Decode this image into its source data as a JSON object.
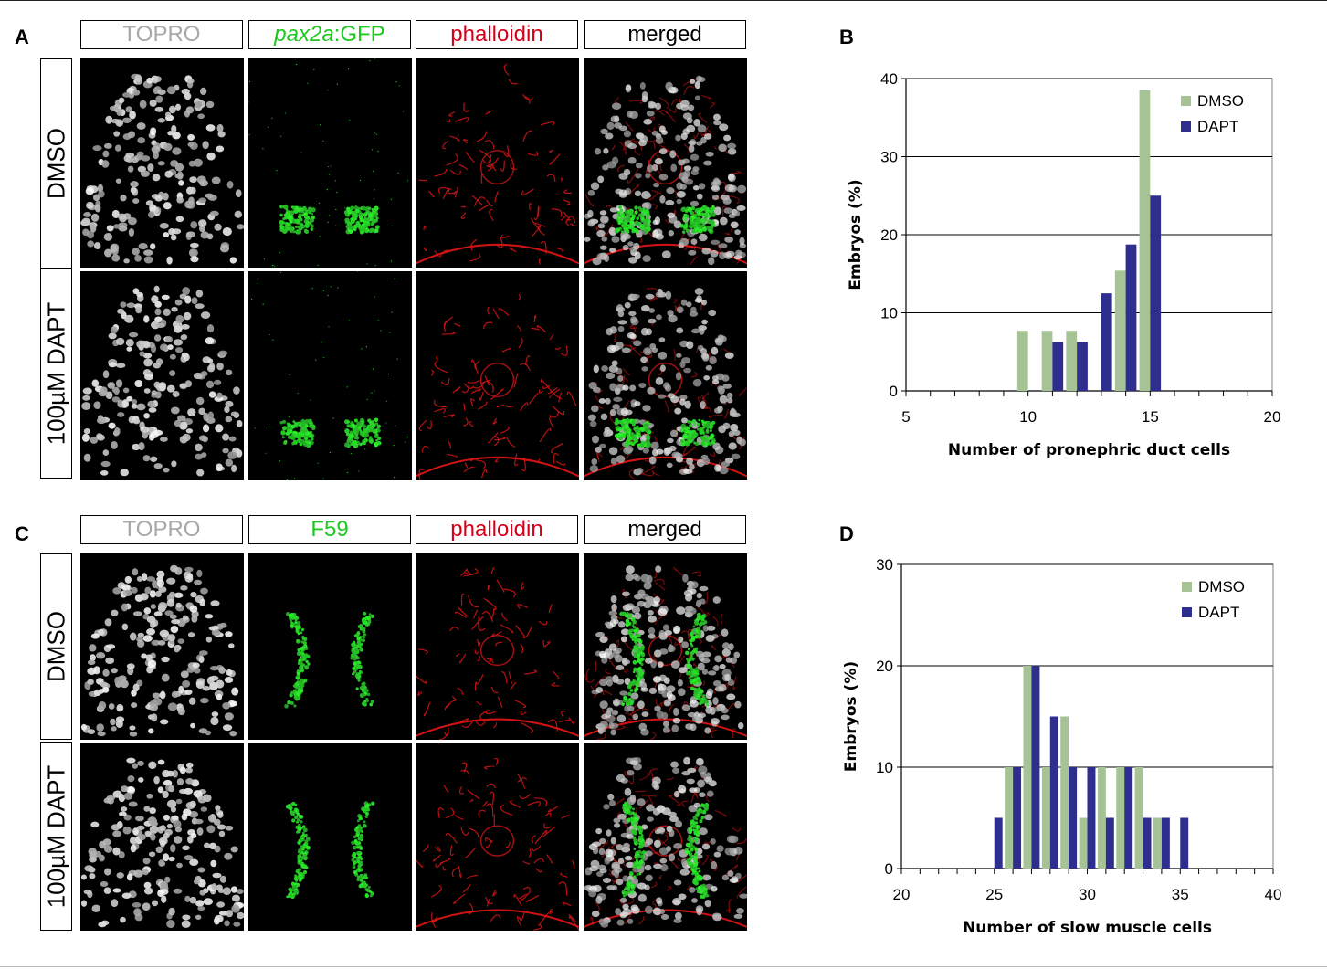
{
  "colors": {
    "gray_label": "#a8a8a8",
    "green_label": "#1ec81e",
    "red_label": "#d4001a",
    "black_label": "#000000",
    "dmso_bar": "#a6c396",
    "dapt_bar": "#2e2e8e"
  },
  "panel_a": {
    "letter": "A",
    "col_headers": [
      {
        "pre": "TOPRO",
        "post": "",
        "color": "#a8a8a8"
      },
      {
        "pre": "pax2a",
        "post": ":GFP",
        "color": "#1ec81e"
      },
      {
        "pre": "phalloidin",
        "post": "",
        "color": "#d4001a"
      },
      {
        "pre": "merged",
        "post": "",
        "color": "#000000"
      }
    ],
    "row_labels": [
      "DMSO",
      "100µM DAPT"
    ]
  },
  "panel_c": {
    "letter": "C",
    "col_headers": [
      {
        "pre": "TOPRO",
        "post": "",
        "color": "#a8a8a8"
      },
      {
        "pre": "F59",
        "post": "",
        "color": "#1ec81e"
      },
      {
        "pre": "phalloidin",
        "post": "",
        "color": "#d4001a"
      },
      {
        "pre": "merged",
        "post": "",
        "color": "#000000"
      }
    ],
    "row_labels": [
      "DMSO",
      "100µM DAPT"
    ]
  },
  "panel_b": {
    "letter": "B"
  },
  "panel_d": {
    "letter": "D"
  },
  "chart_data": [
    {
      "panel": "B",
      "type": "bar",
      "xlabel": "Number of pronephric duct cells",
      "ylabel": "Embryos (%)",
      "xlim": [
        5,
        20
      ],
      "ylim": [
        0,
        40
      ],
      "xticks": [
        5,
        10,
        15,
        20
      ],
      "yticks": [
        0,
        10,
        20,
        30,
        40
      ],
      "grid": true,
      "legend_position": "top-right",
      "x": [
        10,
        11,
        12,
        13,
        14,
        15
      ],
      "series": [
        {
          "name": "DMSO",
          "color": "#a6c396",
          "values": [
            7.7,
            7.7,
            7.7,
            0,
            15.4,
            38.5
          ]
        },
        {
          "name": "DAPT",
          "color": "#2e2e8e",
          "values": [
            0,
            6.25,
            6.25,
            12.5,
            18.75,
            25
          ]
        }
      ]
    },
    {
      "panel": "D",
      "type": "bar",
      "xlabel": "Number of slow muscle cells",
      "ylabel": "Embryos (%)",
      "xlim": [
        20,
        40
      ],
      "ylim": [
        0,
        30
      ],
      "xticks": [
        20,
        25,
        30,
        35,
        40
      ],
      "yticks": [
        0,
        10,
        20,
        30
      ],
      "grid": true,
      "legend_position": "top-right",
      "x": [
        25,
        26,
        27,
        28,
        29,
        30,
        31,
        32,
        33,
        34,
        35
      ],
      "series": [
        {
          "name": "DMSO",
          "color": "#a6c396",
          "values": [
            0,
            10,
            20,
            10,
            15,
            5,
            10,
            10,
            10,
            5,
            0
          ]
        },
        {
          "name": "DAPT",
          "color": "#2e2e8e",
          "values": [
            5,
            10,
            20,
            15,
            10,
            10,
            5,
            10,
            5,
            5,
            5
          ]
        }
      ]
    }
  ]
}
